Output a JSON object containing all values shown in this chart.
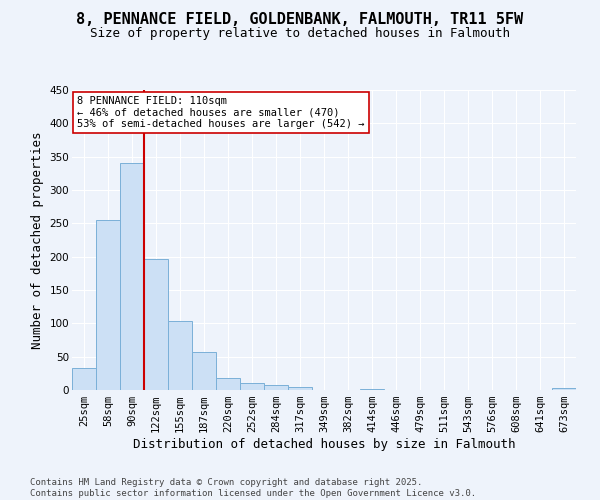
{
  "title": "8, PENNANCE FIELD, GOLDENBANK, FALMOUTH, TR11 5FW",
  "subtitle": "Size of property relative to detached houses in Falmouth",
  "xlabel": "Distribution of detached houses by size in Falmouth",
  "ylabel": "Number of detached properties",
  "categories": [
    "25sqm",
    "58sqm",
    "90sqm",
    "122sqm",
    "155sqm",
    "187sqm",
    "220sqm",
    "252sqm",
    "284sqm",
    "317sqm",
    "349sqm",
    "382sqm",
    "414sqm",
    "446sqm",
    "479sqm",
    "511sqm",
    "543sqm",
    "576sqm",
    "608sqm",
    "641sqm",
    "673sqm"
  ],
  "values": [
    33,
    255,
    340,
    197,
    103,
    57,
    18,
    10,
    7,
    5,
    0,
    0,
    2,
    0,
    0,
    0,
    0,
    0,
    0,
    0,
    3
  ],
  "bar_color": "#cce0f5",
  "bar_edge_color": "#7ab0d8",
  "vline_color": "#cc0000",
  "annotation_text": "8 PENNANCE FIELD: 110sqm\n← 46% of detached houses are smaller (470)\n53% of semi-detached houses are larger (542) →",
  "annotation_box_color": "#ffffff",
  "annotation_box_edge_color": "#cc0000",
  "ylim": [
    0,
    450
  ],
  "yticks": [
    0,
    50,
    100,
    150,
    200,
    250,
    300,
    350,
    400,
    450
  ],
  "footer": "Contains HM Land Registry data © Crown copyright and database right 2025.\nContains public sector information licensed under the Open Government Licence v3.0.",
  "background_color": "#eef3fb",
  "title_fontsize": 11,
  "subtitle_fontsize": 9,
  "axis_label_fontsize": 9,
  "tick_fontsize": 7.5,
  "annotation_fontsize": 7.5,
  "footer_fontsize": 6.5
}
